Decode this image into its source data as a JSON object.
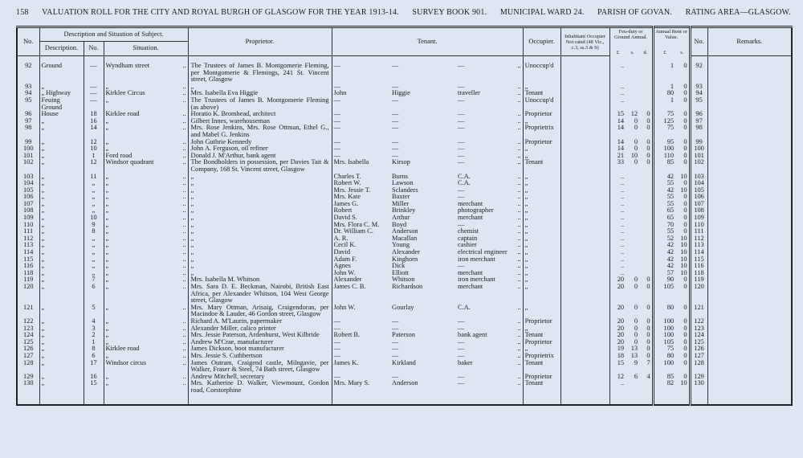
{
  "header": {
    "page": "158",
    "title": "VALUATION ROLL FOR THE CITY AND ROYAL BURGH OF GLASGOW FOR THE YEAR 1913-14.",
    "survey": "SURVEY BOOK 901.",
    "ward": "MUNICIPAL WARD 24.",
    "parish": "PARISH OF GOVAN.",
    "area": "RATING AREA—GLASGOW."
  },
  "columns": {
    "no": "No.",
    "subject": "Description and Situation of Subject.",
    "description": "Description.",
    "number": "No.",
    "situation": "Situation.",
    "proprietor": "Proprietor.",
    "tenant": "Tenant.",
    "occupier": "Occupier.",
    "inhabitant": "Inhabitant Occupier Not rated (48 Vic., c.3, ss.3 & 9)",
    "feu": "Feu-duty or Ground Annual.",
    "rent": "Annual Rent or Value.",
    "no2": "No.",
    "remarks": "Remarks.",
    "feu_l": "£",
    "feu_s": "s.",
    "feu_d": "d.",
    "rent_l": "£",
    "rent_s": "s."
  },
  "table": {
    "rows": [
      [
        "92",
        "Ground",
        "—",
        "Wyndham street",
        "..",
        "The Trustees of James B. Montgomerie Fleming, per Montgomerie & Flemings, 241 St. Vincent street, Glasgow",
        "—",
        "—",
        "—",
        "..",
        "Unoccup'd",
        null,
        "..",
        null,
        null,
        "1",
        "0",
        "92"
      ],
      [
        "93",
        "„",
        "—",
        "„",
        "..",
        "„",
        "—",
        "—",
        "—",
        "..",
        "„",
        null,
        "..",
        null,
        null,
        "1",
        "0",
        "93"
      ],
      [
        "94",
        "„ Highway",
        "—",
        "Kirklee Circus",
        "..",
        "Mrs. Isabella Eva Higgie",
        "John",
        "Higgie",
        "traveller",
        "..",
        "Tenant",
        null,
        "..",
        null,
        null,
        "80",
        "0",
        "94"
      ],
      [
        "95",
        "Feuing Ground",
        "—",
        "„",
        "..",
        "The Trustees of James B. Montgomerie Fleming (as above)",
        "—",
        "—",
        "—",
        "..",
        "Unoccup'd",
        null,
        "..",
        null,
        null,
        "1",
        "0",
        "95"
      ],
      [
        "96",
        "House",
        "18",
        "Kirklee road",
        "..",
        "Horatio K. Bromhead, architect",
        "—",
        "—",
        "—",
        "..",
        "Proprietor",
        null,
        "15",
        "12",
        "0",
        "75",
        "0",
        "96"
      ],
      [
        "97",
        "„",
        "16",
        "„",
        "..",
        "Gilbert Innes, warehouseman",
        "—",
        "—",
        "—",
        "..",
        "„",
        null,
        "14",
        "0",
        "0",
        "125",
        "0",
        "97"
      ],
      [
        "98",
        "„",
        "14",
        "„",
        "..",
        "Mrs. Rose Jenkins, Mrs. Rose Ottman, Ethel G., and Mabel G. Jenkins",
        "—",
        "—",
        "—",
        "..",
        "Proprietrix",
        null,
        "14",
        "0",
        "0",
        "75",
        "0",
        "98"
      ],
      [
        "99",
        "„",
        "12",
        "„",
        "..",
        "John Guthrie Kennedy",
        "—",
        "—",
        "—",
        "..",
        "Proprietor",
        null,
        "14",
        "0",
        "0",
        "95",
        "0",
        "99"
      ],
      [
        "100",
        "„",
        "10",
        "„",
        "..",
        "John A. Ferguson, oil refiner",
        "—",
        "—",
        "—",
        "..",
        "„",
        null,
        "14",
        "0",
        "0",
        "100",
        "0",
        "100"
      ],
      [
        "101",
        "„",
        "1",
        "Ford road",
        "..",
        "Donald J. M'Arthur, bank agent",
        "—",
        "—",
        "—",
        "..",
        "„",
        null,
        "21",
        "10",
        "0",
        "110",
        "0",
        "101"
      ],
      [
        "102",
        "„",
        "12",
        "Windsor quadrant",
        "..",
        "The Bondholders in possession, per Davies Tait & Company, 168 St. Vincent street, Glasgow",
        "Mrs. Isabella",
        "Kirsop",
        "—",
        "..",
        "Tenant",
        null,
        "33",
        "0",
        "0",
        "85",
        "0",
        "102"
      ],
      [
        "103",
        "„",
        "11",
        "„",
        "..",
        "„",
        "Charles T.",
        "Burns",
        "C.A.",
        "..",
        "„",
        null,
        "..",
        null,
        null,
        "42",
        "10",
        "103"
      ],
      [
        "104",
        "„",
        "„",
        "„",
        "..",
        "„",
        "Robert W.",
        "Lawson",
        "C.A.",
        "..",
        "„",
        null,
        "..",
        null,
        null,
        "55",
        "0",
        "104"
      ],
      [
        "105",
        "„",
        "„",
        "„",
        "..",
        "„",
        "Mrs. Jessie T.",
        "Sclanders",
        "—",
        "..",
        "„",
        null,
        "..",
        null,
        null,
        "42",
        "10",
        "105"
      ],
      [
        "106",
        "„",
        "„",
        "„",
        "..",
        "„",
        "Mrs. Kate",
        "Baxter",
        "—",
        "..",
        "„",
        null,
        "..",
        null,
        null,
        "55",
        "0",
        "106"
      ],
      [
        "107",
        "„",
        "„",
        "„",
        "..",
        "„",
        "James G.",
        "Miller",
        "merchant",
        "..",
        "„",
        null,
        "..",
        null,
        null,
        "55",
        "0",
        "107"
      ],
      [
        "108",
        "„",
        "„",
        "„",
        "..",
        "„",
        "Robert",
        "Brinkley",
        "photographer",
        "..",
        "„",
        null,
        "..",
        null,
        null,
        "65",
        "0",
        "108"
      ],
      [
        "109",
        "„",
        "10",
        "„",
        "..",
        "„",
        "David S.",
        "Arthur",
        "merchant",
        "..",
        "„",
        null,
        "..",
        null,
        null,
        "65",
        "0",
        "109"
      ],
      [
        "110",
        "„",
        "9",
        "„",
        "..",
        "„",
        "Mrs. Flora C. M.",
        "Boyd",
        "—",
        "..",
        "„",
        null,
        "..",
        null,
        null,
        "70",
        "0",
        "110"
      ],
      [
        "111",
        "„",
        "8",
        "„",
        "..",
        "„",
        "Dr. William C.",
        "Anderson",
        "chemist",
        "..",
        "„",
        null,
        "..",
        null,
        null,
        "55",
        "0",
        "111"
      ],
      [
        "112",
        "„",
        "„",
        "„",
        "..",
        "„",
        "A. R.",
        "Macallan",
        "captain",
        "..",
        "„",
        null,
        "..",
        null,
        null,
        "52",
        "10",
        "112"
      ],
      [
        "113",
        "„",
        "„",
        "„",
        "..",
        "„",
        "Cecil K.",
        "Young",
        "cashier",
        "..",
        "„",
        null,
        "..",
        null,
        null,
        "42",
        "10",
        "113"
      ],
      [
        "114",
        "„",
        "„",
        "„",
        "..",
        "„",
        "David",
        "Alexander",
        "electrical engineer",
        "..",
        "„",
        null,
        "..",
        null,
        null,
        "42",
        "10",
        "114"
      ],
      [
        "115",
        "„",
        "„",
        "„",
        "..",
        "„",
        "Adam F.",
        "Kinghorn",
        "iron merchant",
        "..",
        "„",
        null,
        "..",
        null,
        null,
        "42",
        "10",
        "115"
      ],
      [
        "116",
        "„",
        "„",
        "„",
        "..",
        "„",
        "Agnes",
        "Dick",
        "—",
        "..",
        "„",
        null,
        "..",
        null,
        null,
        "42",
        "10",
        "116"
      ],
      [
        "118",
        "„",
        "„",
        "„",
        "..",
        "„",
        "John W.",
        "Elliott",
        "merchant",
        "..",
        "„",
        null,
        "..",
        null,
        null,
        "57",
        "10",
        "118"
      ],
      [
        "119",
        "„",
        "7",
        "„",
        "..",
        "Mrs. Isabella M. Whitson",
        "Alexander",
        "Whitson",
        "iron merchant",
        "..",
        "„",
        null,
        "20",
        "0",
        "0",
        "90",
        "0",
        "119"
      ],
      [
        "120",
        "„",
        "6",
        "„",
        "..",
        "Mrs. Sara D. E. Beckman, Nairobi, British East Africa, per Alexander Whitson, 104 West George street, Glasgow",
        "James C. B.",
        "Richardson",
        "merchant",
        "..",
        "„",
        null,
        "20",
        "0",
        "0",
        "105",
        "0",
        "120"
      ],
      [
        "121",
        "„",
        "5",
        "„",
        "..",
        "Mrs. Mary Ottman, Arisaig, Craigendoran, per Macindoe & Lauder, 46 Gordon street, Glasgow",
        "John W.",
        "Gourlay",
        "C.A.",
        "..",
        "„",
        null,
        "20",
        "0",
        "0",
        "80",
        "0",
        "121"
      ],
      [
        "122",
        "„",
        "4",
        "„",
        "..",
        "Richard A. M'Laurin, papermaker",
        "—",
        "—",
        "—",
        "..",
        "Proprietor",
        null,
        "20",
        "0",
        "0",
        "100",
        "0",
        "122"
      ],
      [
        "123",
        "„",
        "3",
        "„",
        "..",
        "Alexander Miller, calico printer",
        "—",
        "—",
        "—",
        "..",
        "„",
        null,
        "20",
        "0",
        "0",
        "100",
        "0",
        "123"
      ],
      [
        "124",
        "„",
        "2",
        "„",
        "..",
        "Mrs. Jessie Paterson, Ardenhurst, West Kilbride",
        "Robert B.",
        "Paterson",
        "bank agent",
        "..",
        "Tenant",
        null,
        "20",
        "0",
        "0",
        "100",
        "0",
        "124"
      ],
      [
        "125",
        "„",
        "1",
        "„",
        "..",
        "Andrew M'Crae, manufacturer",
        "—",
        "—",
        "—",
        "..",
        "Proprietor",
        null,
        "20",
        "0",
        "0",
        "105",
        "0",
        "125"
      ],
      [
        "126",
        "„",
        "8",
        "Kirklee road",
        "..",
        "James Dickson, boot manufacturer",
        "—",
        "—",
        "—",
        "..",
        "„",
        null,
        "19",
        "13",
        "0",
        "75",
        "0",
        "126"
      ],
      [
        "127",
        "„",
        "6",
        "„",
        "..",
        "Mrs. Jessie S. Cuthbertson",
        "—",
        "—",
        "—",
        "..",
        "Proprietrix",
        null,
        "18",
        "13",
        "0",
        "80",
        "0",
        "127"
      ],
      [
        "128",
        "„",
        "17",
        "Windsor circus",
        "..",
        "James Outram, Craigend castle, Milngavie, per Walker, Fraser & Steel, 74 Bath street, Glasgow",
        "James K.",
        "Kirkland",
        "baker",
        "..",
        "Tenant",
        null,
        "15",
        "9",
        "7",
        "100",
        "0",
        "128"
      ],
      [
        "129",
        "„",
        "16",
        "„",
        "..",
        "Andrew Mitchell, secretary",
        "—",
        "—",
        "—",
        "..",
        "Proprietor",
        null,
        "12",
        "6",
        "4",
        "85",
        "0",
        "129"
      ],
      [
        "130",
        "„",
        "15",
        "„",
        "..",
        "Mrs. Katherine D. Walker, Viewmount, Gordon road, Corstorphine",
        "Mrs. Mary S.",
        "Anderson",
        "—",
        "..",
        "Tenant",
        null,
        "..",
        null,
        null,
        "82",
        "10",
        "130"
      ]
    ]
  }
}
